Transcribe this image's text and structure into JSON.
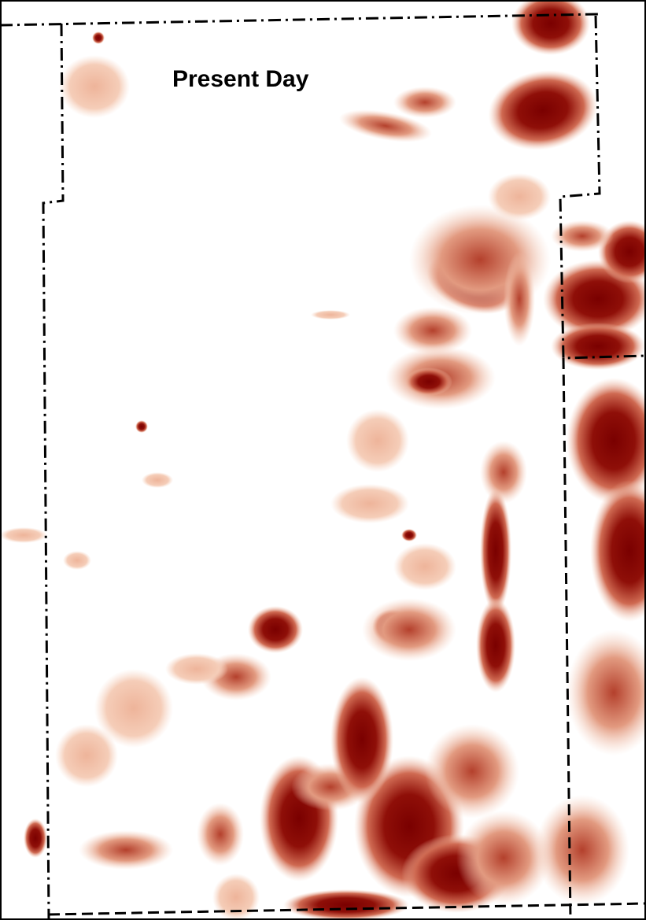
{
  "map": {
    "title": "Present Day"
  }
}
